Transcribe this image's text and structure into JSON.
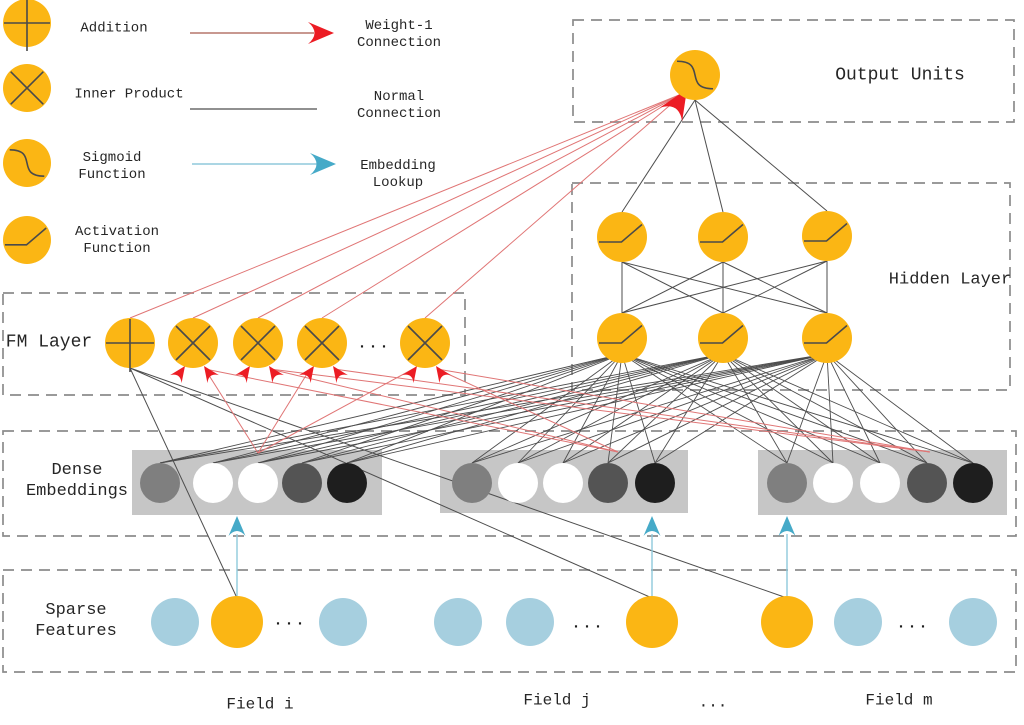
{
  "legend": {
    "nodes": [
      {
        "glyph": "plus",
        "label_lines": [
          "Addition",
          ""
        ]
      },
      {
        "glyph": "cross",
        "label_lines": [
          "Inner Product",
          ""
        ]
      },
      {
        "glyph": "sigmoid",
        "label_lines": [
          "Sigmoid",
          "Function"
        ]
      },
      {
        "glyph": "activation",
        "label_lines": [
          "Activation",
          "Function"
        ]
      }
    ],
    "connections": [
      {
        "style": "weight1-red-arrow",
        "label_lines": [
          "Weight-1",
          "Connection"
        ]
      },
      {
        "style": "normal-black-line",
        "label_lines": [
          "Normal",
          "Connection"
        ]
      },
      {
        "style": "embedding-blue-arrow",
        "label_lines": [
          "Embedding",
          "Lookup"
        ]
      }
    ]
  },
  "boxes": {
    "output": {
      "label": "Output Units"
    },
    "hidden": {
      "label": "Hidden Layer"
    },
    "fm": {
      "label": "FM Layer"
    },
    "dense": {
      "label_lines": [
        "Dense",
        "Embeddings"
      ]
    },
    "sparse": {
      "label_lines": [
        "Sparse",
        "Features"
      ]
    }
  },
  "ellipsis": "...",
  "fields": [
    {
      "label": "Field i"
    },
    {
      "label": "Field j"
    },
    {
      "label": "..."
    },
    {
      "label": "Field m"
    }
  ],
  "output_node": {
    "glyph": "sigmoid"
  },
  "hidden_layer": {
    "rows": 2,
    "nodes_per_row": 3,
    "glyph": "activation"
  },
  "fm_nodes": [
    "plus",
    "cross",
    "cross",
    "cross",
    "ellipsis",
    "cross"
  ],
  "sparse_fields": [
    {
      "pattern": [
        "blue",
        "yellow",
        "ellipsis",
        "blue"
      ]
    },
    {
      "pattern": [
        "blue",
        "blue",
        "ellipsis",
        "yellow"
      ]
    },
    {
      "pattern": [
        "yellow",
        "blue",
        "ellipsis",
        "blue"
      ]
    }
  ],
  "embedding_pattern": [
    "gray",
    "white",
    "white",
    "darkgray",
    "black"
  ],
  "colors": {
    "yellow": "#FBB614",
    "light_blue": "#A6CFDF",
    "red": "#EC1C24",
    "red_line": "#E07575",
    "legend_red_line": "#A85A4E",
    "blue_arrow": "#46AAC8",
    "blue_tail": "#8FC9DB",
    "emb_box_gray": "#C6C6C6",
    "emb_gray": "#7F7F7F",
    "emb_darkgray": "#545454",
    "emb_black": "#1E1E1E",
    "emb_white": "#FFFFFF",
    "dash_gray": "#8C8C8C",
    "line": "#4D4D4D",
    "glyph": "#4A4A4A",
    "text": "#262626"
  }
}
